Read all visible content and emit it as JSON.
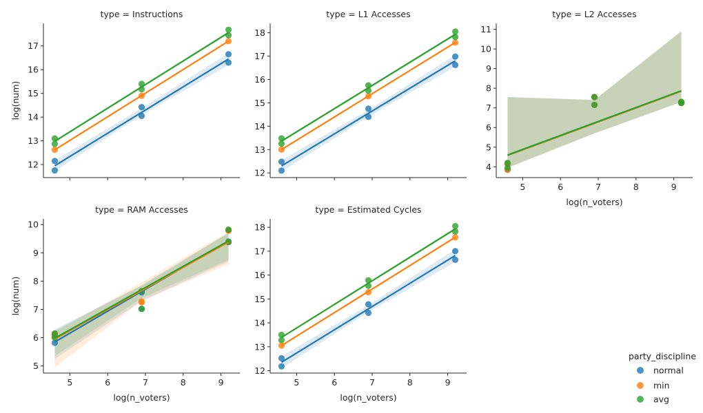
{
  "legend": {
    "title": "party_discipline",
    "placement": "right",
    "entries": [
      {
        "label": "normal",
        "color": "#1f77b4"
      },
      {
        "label": "min",
        "color": "#ff7f0e"
      },
      {
        "label": "avg",
        "color": "#2ca02c"
      }
    ]
  },
  "chart_data": [
    {
      "type": "scatter",
      "title": "type = Instructions",
      "xlabel": "",
      "ylabel": "log(num)",
      "xlim": [
        4.3,
        9.5
      ],
      "ylim": [
        11.45,
        17.95
      ],
      "xticks": [
        5,
        6,
        7,
        8,
        9
      ],
      "xtick_labels_visible": false,
      "yticks": [
        12,
        13,
        14,
        15,
        16,
        17
      ],
      "series": [
        {
          "name": "normal",
          "color": "#1f77b4",
          "x": [
            4.6,
            4.6,
            6.9,
            6.9,
            9.2,
            9.2
          ],
          "y": [
            11.75,
            12.15,
            14.05,
            14.42,
            16.3,
            16.65
          ],
          "fit": [
            [
              4.6,
              11.95
            ],
            [
              9.2,
              16.45
            ]
          ],
          "ci": [
            [
              4.6,
              11.72,
              12.18
            ],
            [
              6.9,
              14.08,
              14.38
            ],
            [
              9.2,
              16.2,
              16.7
            ]
          ]
        },
        {
          "name": "min",
          "color": "#ff7f0e",
          "x": [
            4.6,
            6.9,
            9.2
          ],
          "y": [
            12.62,
            14.9,
            17.2
          ],
          "fit": [
            [
              4.6,
              12.62
            ],
            [
              9.2,
              17.2
            ]
          ],
          "ci": [
            [
              4.6,
              12.6,
              12.64
            ],
            [
              6.9,
              14.88,
              14.92
            ],
            [
              9.2,
              17.18,
              17.22
            ]
          ]
        },
        {
          "name": "avg",
          "color": "#2ca02c",
          "x": [
            4.6,
            4.6,
            6.9,
            6.9,
            9.2,
            9.2
          ],
          "y": [
            12.87,
            13.1,
            15.17,
            15.4,
            17.45,
            17.68
          ],
          "fit": [
            [
              4.6,
              12.98
            ],
            [
              9.2,
              17.56
            ]
          ],
          "ci": [
            [
              4.6,
              12.93,
              13.03
            ],
            [
              6.9,
              15.23,
              15.33
            ],
            [
              9.2,
              17.5,
              17.62
            ]
          ]
        }
      ]
    },
    {
      "type": "scatter",
      "title": "type = L1 Accesses",
      "xlabel": "",
      "ylabel": "",
      "xlim": [
        4.3,
        9.5
      ],
      "ylim": [
        11.8,
        18.4
      ],
      "xticks": [
        5,
        6,
        7,
        8,
        9
      ],
      "xtick_labels_visible": false,
      "yticks": [
        12,
        13,
        14,
        15,
        16,
        17,
        18
      ],
      "series": [
        {
          "name": "normal",
          "color": "#1f77b4",
          "x": [
            4.6,
            4.6,
            6.9,
            6.9,
            9.2,
            9.2
          ],
          "y": [
            12.1,
            12.48,
            14.4,
            14.75,
            16.62,
            16.98
          ],
          "fit": [
            [
              4.6,
              12.3
            ],
            [
              9.2,
              16.8
            ]
          ],
          "ci": [
            [
              4.6,
              12.06,
              12.54
            ],
            [
              6.9,
              14.4,
              14.7
            ],
            [
              9.2,
              16.55,
              17.05
            ]
          ]
        },
        {
          "name": "min",
          "color": "#ff7f0e",
          "x": [
            4.6,
            6.9,
            9.2
          ],
          "y": [
            13.0,
            15.28,
            17.58
          ],
          "fit": [
            [
              4.6,
              13.0
            ],
            [
              9.2,
              17.58
            ]
          ],
          "ci": [
            [
              4.6,
              12.98,
              13.02
            ],
            [
              6.9,
              15.26,
              15.3
            ],
            [
              9.2,
              17.56,
              17.6
            ]
          ]
        },
        {
          "name": "avg",
          "color": "#2ca02c",
          "x": [
            4.6,
            4.6,
            6.9,
            6.9,
            9.2,
            9.2
          ],
          "y": [
            13.25,
            13.48,
            15.52,
            15.75,
            17.82,
            18.05
          ],
          "fit": [
            [
              4.6,
              13.36
            ],
            [
              9.2,
              17.93
            ]
          ],
          "ci": [
            [
              4.6,
              13.31,
              13.41
            ],
            [
              6.9,
              15.58,
              15.68
            ],
            [
              9.2,
              17.87,
              17.99
            ]
          ]
        }
      ]
    },
    {
      "type": "scatter",
      "title": "type = L2 Accesses",
      "xlabel": "log(n_voters)",
      "ylabel": "",
      "xlim": [
        4.3,
        9.5
      ],
      "ylim": [
        3.45,
        11.3
      ],
      "xticks": [
        5,
        6,
        7,
        8,
        9
      ],
      "xtick_labels_visible": true,
      "yticks": [
        4,
        5,
        6,
        7,
        8,
        9,
        10,
        11
      ],
      "series": [
        {
          "name": "normal",
          "color": "#1f77b4",
          "x": [
            4.6,
            4.6,
            6.9,
            6.9,
            9.2,
            9.2
          ],
          "y": [
            3.85,
            4.15,
            7.15,
            7.55,
            7.25,
            7.3
          ],
          "fit": [
            [
              4.6,
              4.58
            ],
            [
              9.2,
              7.85
            ]
          ],
          "ci": [
            [
              4.6,
              3.95,
              7.55
            ],
            [
              6.9,
              5.7,
              7.4
            ],
            [
              9.2,
              7.3,
              10.9
            ]
          ]
        },
        {
          "name": "min",
          "color": "#ff7f0e",
          "x": [
            4.6,
            4.6,
            6.9,
            6.9,
            9.2,
            9.2
          ],
          "y": [
            3.85,
            4.15,
            7.15,
            7.55,
            7.25,
            7.3
          ],
          "fit": [
            [
              4.6,
              4.58
            ],
            [
              9.2,
              7.85
            ]
          ],
          "ci": [
            [
              4.6,
              3.95,
              7.55
            ],
            [
              6.9,
              5.7,
              7.4
            ],
            [
              9.2,
              7.3,
              10.9
            ]
          ]
        },
        {
          "name": "avg",
          "color": "#2ca02c",
          "x": [
            4.6,
            4.6,
            6.9,
            6.9,
            9.2,
            9.2
          ],
          "y": [
            3.95,
            4.2,
            7.15,
            7.55,
            7.25,
            7.3
          ],
          "fit": [
            [
              4.6,
              4.6
            ],
            [
              9.2,
              7.87
            ]
          ],
          "ci": [
            [
              4.6,
              3.95,
              7.55
            ],
            [
              6.9,
              5.7,
              7.4
            ],
            [
              9.2,
              7.3,
              10.9
            ]
          ]
        }
      ]
    },
    {
      "type": "scatter",
      "title": "type = RAM Accesses",
      "xlabel": "log(n_voters)",
      "ylabel": "log(num)",
      "xlim": [
        4.3,
        9.5
      ],
      "ylim": [
        4.75,
        10.2
      ],
      "xticks": [
        5,
        6,
        7,
        8,
        9
      ],
      "xtick_labels_visible": true,
      "yticks": [
        5,
        6,
        7,
        8,
        9,
        10
      ],
      "series": [
        {
          "name": "normal",
          "color": "#1f77b4",
          "x": [
            4.6,
            4.6,
            6.9,
            6.9,
            9.2,
            9.2
          ],
          "y": [
            5.82,
            6.1,
            7.6,
            7.02,
            9.4,
            9.8
          ],
          "fit": [
            [
              4.6,
              5.85
            ],
            [
              9.2,
              9.42
            ]
          ],
          "ci": [
            [
              4.6,
              5.25,
              6.3
            ],
            [
              6.9,
              7.3,
              7.85
            ],
            [
              9.2,
              8.7,
              9.7
            ]
          ]
        },
        {
          "name": "min",
          "color": "#ff7f0e",
          "x": [
            4.6,
            4.6,
            6.9,
            6.9,
            9.2,
            9.2
          ],
          "y": [
            6.05,
            6.15,
            7.25,
            7.28,
            9.38,
            9.78
          ],
          "fit": [
            [
              4.6,
              5.95
            ],
            [
              9.2,
              9.38
            ]
          ],
          "ci": [
            [
              4.6,
              4.95,
              6.2
            ],
            [
              6.9,
              7.3,
              7.95
            ],
            [
              9.2,
              8.6,
              9.75
            ]
          ]
        },
        {
          "name": "avg",
          "color": "#2ca02c",
          "x": [
            4.6,
            4.6,
            6.9,
            6.9,
            9.2,
            9.2
          ],
          "y": [
            6.0,
            6.15,
            7.65,
            7.02,
            9.38,
            9.82
          ],
          "fit": [
            [
              4.6,
              5.98
            ],
            [
              9.2,
              9.42
            ]
          ],
          "ci": [
            [
              4.6,
              5.35,
              6.25
            ],
            [
              6.9,
              7.4,
              7.85
            ],
            [
              9.2,
              8.75,
              9.7
            ]
          ]
        }
      ]
    },
    {
      "type": "scatter",
      "title": "type = Estimated Cycles",
      "xlabel": "log(n_voters)",
      "ylabel": "",
      "xlim": [
        4.3,
        9.5
      ],
      "ylim": [
        11.9,
        18.35
      ],
      "xticks": [
        5,
        6,
        7,
        8,
        9
      ],
      "xtick_labels_visible": true,
      "yticks": [
        12,
        13,
        14,
        15,
        16,
        17,
        18
      ],
      "series": [
        {
          "name": "normal",
          "color": "#1f77b4",
          "x": [
            4.6,
            4.6,
            6.9,
            6.9,
            9.2,
            9.2
          ],
          "y": [
            12.18,
            12.52,
            14.42,
            14.78,
            16.64,
            17.0
          ],
          "fit": [
            [
              4.6,
              12.35
            ],
            [
              9.2,
              16.82
            ]
          ],
          "ci": [
            [
              4.6,
              12.1,
              12.6
            ],
            [
              6.9,
              14.45,
              14.75
            ],
            [
              9.2,
              16.55,
              17.08
            ]
          ]
        },
        {
          "name": "min",
          "color": "#ff7f0e",
          "x": [
            4.6,
            6.9,
            9.2
          ],
          "y": [
            13.05,
            15.28,
            17.58
          ],
          "fit": [
            [
              4.6,
              13.05
            ],
            [
              9.2,
              17.58
            ]
          ],
          "ci": [
            [
              4.6,
              13.03,
              13.07
            ],
            [
              6.9,
              15.26,
              15.3
            ],
            [
              9.2,
              17.56,
              17.6
            ]
          ]
        },
        {
          "name": "avg",
          "color": "#2ca02c",
          "x": [
            4.6,
            4.6,
            6.9,
            6.9,
            9.2,
            9.2
          ],
          "y": [
            13.28,
            13.5,
            15.55,
            15.78,
            17.82,
            18.05
          ],
          "fit": [
            [
              4.6,
              13.39
            ],
            [
              9.2,
              17.93
            ]
          ],
          "ci": [
            [
              4.6,
              13.34,
              13.44
            ],
            [
              6.9,
              15.61,
              15.71
            ],
            [
              9.2,
              17.87,
              17.99
            ]
          ]
        }
      ]
    }
  ]
}
